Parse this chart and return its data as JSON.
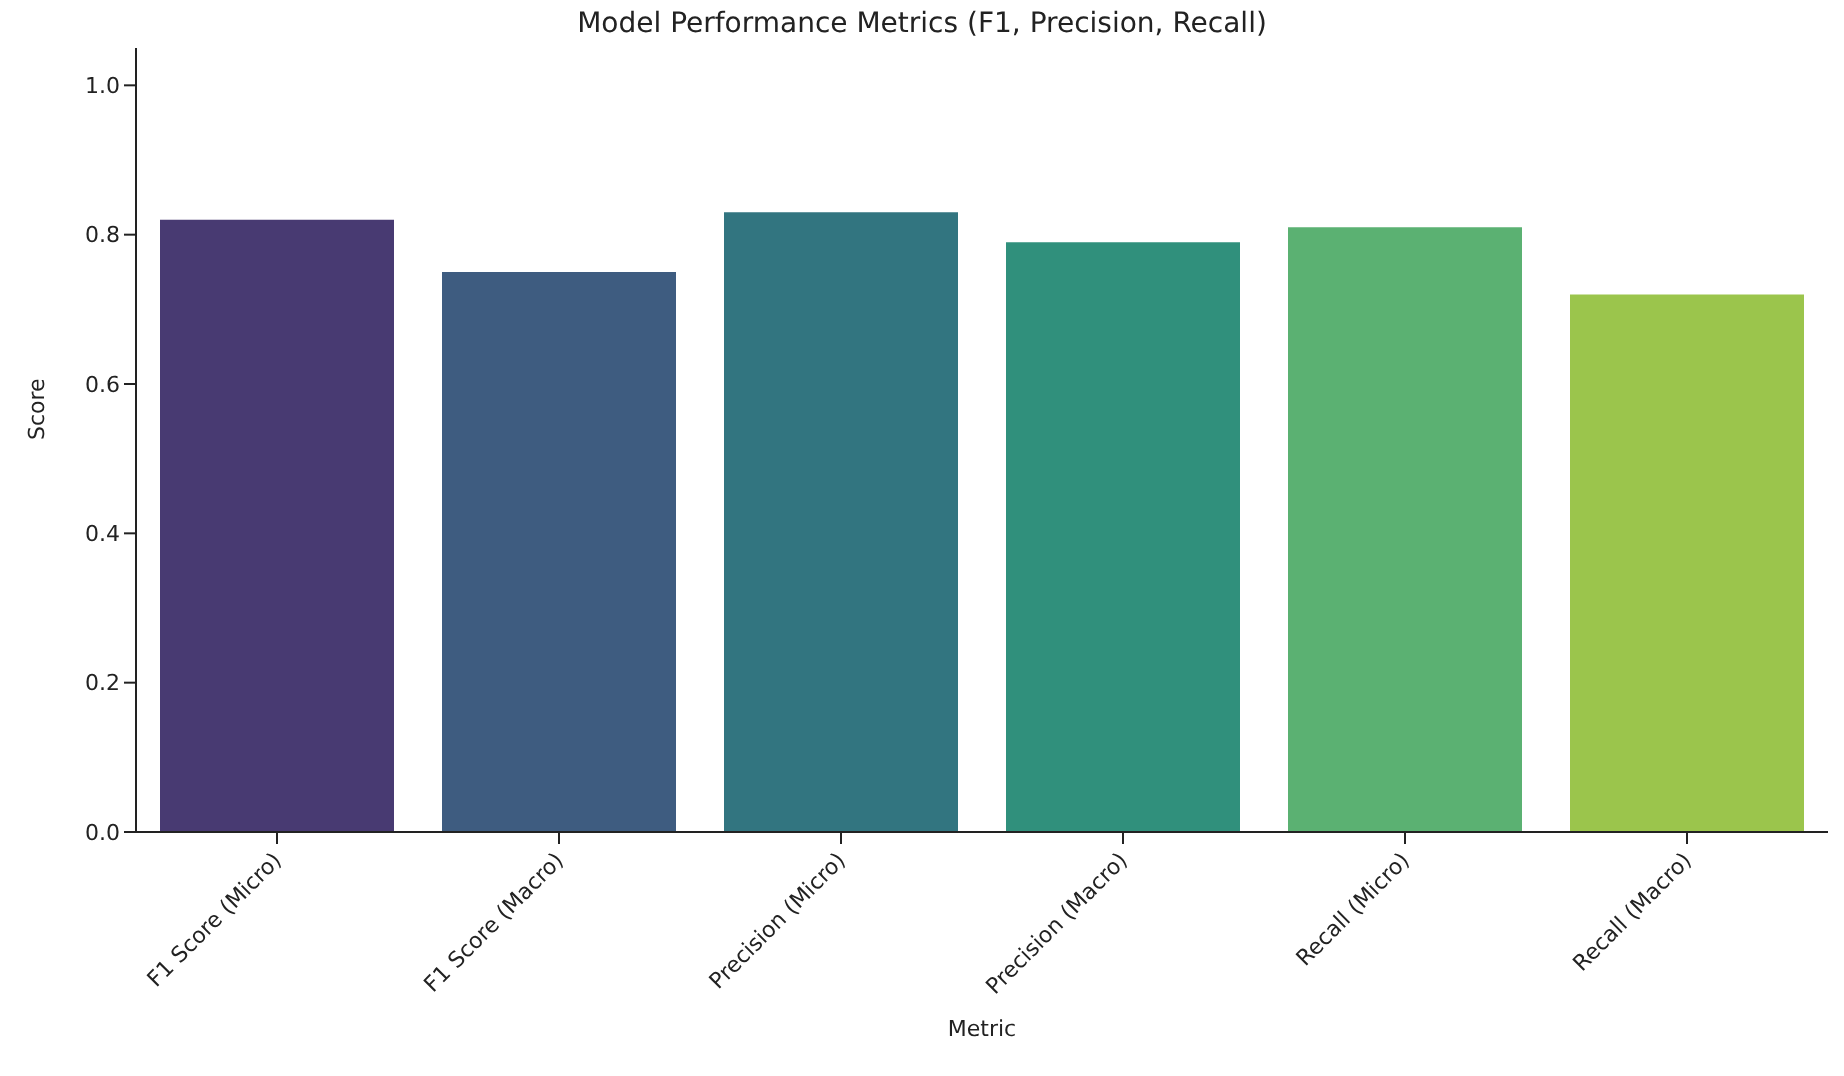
{
  "chart_data": {
    "type": "bar",
    "title": "Model Performance Metrics (F1, Precision, Recall)",
    "xlabel": "Metric",
    "ylabel": "Score",
    "categories": [
      "F1 Score (Micro)",
      "F1 Score (Macro)",
      "Precision (Micro)",
      "Precision (Macro)",
      "Recall (Micro)",
      "Recall (Macro)"
    ],
    "values": [
      0.82,
      0.75,
      0.83,
      0.79,
      0.81,
      0.72
    ],
    "colors": [
      "#483a72",
      "#3e5c80",
      "#327580",
      "#30907c",
      "#5bb172",
      "#9bc54c"
    ],
    "ylim": [
      0,
      1.05
    ],
    "yticks": [
      {
        "value": 0,
        "label": "0.0"
      },
      0.2,
      0.4,
      0.6,
      0.8,
      {
        "value": 1,
        "label": "1.0"
      }
    ],
    "grid": false
  }
}
